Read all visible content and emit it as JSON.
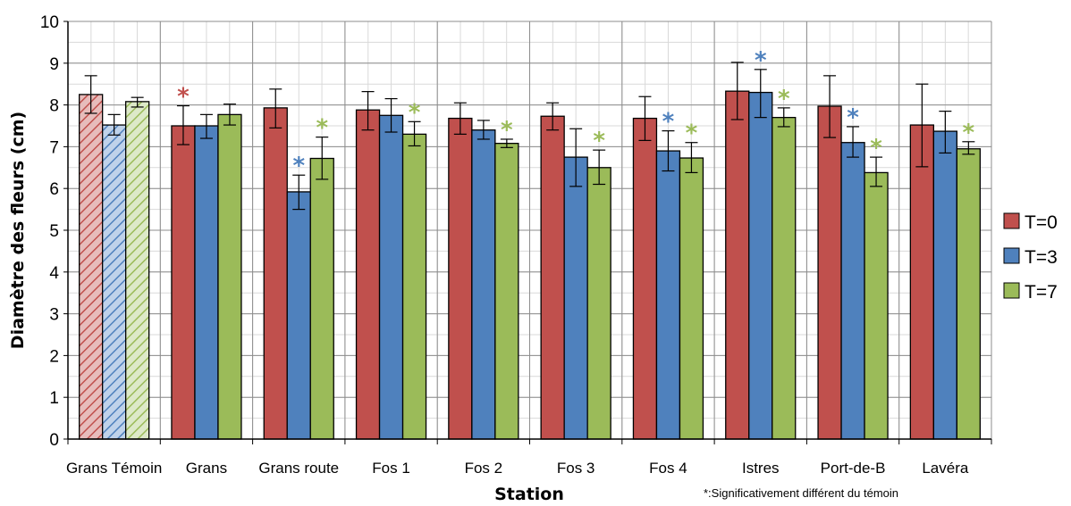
{
  "chart_data": {
    "type": "bar",
    "xlabel": "Station",
    "ylabel": "Diamètre des fleurs (cm)",
    "ylim": [
      0,
      10
    ],
    "yticks": [
      0,
      1,
      2,
      3,
      4,
      5,
      6,
      7,
      8,
      9,
      10
    ],
    "grid": true,
    "legend_position": "right",
    "categories": [
      "Grans Témoin",
      "Grans",
      "Grans route",
      "Fos 1",
      "Fos 2",
      "Fos 3",
      "Fos 4",
      "Istres",
      "Port-de-B",
      "Lavéra"
    ],
    "hatched_categories": [
      "Grans Témoin"
    ],
    "series": [
      {
        "name": "T=0",
        "color": "#c0504d",
        "values": [
          8.25,
          7.5,
          7.93,
          7.88,
          7.68,
          7.73,
          7.68,
          8.33,
          7.97,
          7.52
        ],
        "err_low": [
          7.8,
          7.05,
          7.45,
          7.4,
          7.3,
          7.4,
          7.15,
          7.65,
          7.22,
          6.52
        ],
        "err_high": [
          8.7,
          7.98,
          8.38,
          8.32,
          8.05,
          8.05,
          8.2,
          9.02,
          8.7,
          8.5
        ],
        "significant": [
          false,
          true,
          false,
          false,
          false,
          false,
          false,
          false,
          false,
          false
        ]
      },
      {
        "name": "T=3",
        "color": "#4f81bd",
        "values": [
          7.52,
          7.5,
          5.92,
          7.75,
          7.4,
          6.75,
          6.9,
          8.3,
          7.1,
          7.37
        ],
        "err_low": [
          7.28,
          7.2,
          5.5,
          7.35,
          7.18,
          6.05,
          6.42,
          7.7,
          6.75,
          6.85
        ],
        "err_high": [
          7.77,
          7.77,
          6.32,
          8.15,
          7.63,
          7.43,
          7.38,
          8.85,
          7.48,
          7.85
        ],
        "significant": [
          false,
          false,
          true,
          false,
          false,
          false,
          true,
          true,
          true,
          false
        ]
      },
      {
        "name": "T=7",
        "color": "#9bbb59",
        "values": [
          8.08,
          7.77,
          6.72,
          7.3,
          7.08,
          6.5,
          6.73,
          7.7,
          6.38,
          6.95
        ],
        "err_low": [
          7.95,
          7.52,
          6.22,
          7.02,
          6.98,
          6.1,
          6.38,
          7.48,
          6.05,
          6.82
        ],
        "err_high": [
          8.18,
          8.02,
          7.23,
          7.6,
          7.18,
          6.92,
          7.1,
          7.93,
          6.75,
          7.12
        ],
        "significant": [
          false,
          false,
          true,
          true,
          true,
          true,
          true,
          true,
          true,
          true
        ]
      }
    ],
    "significance_marker": "*",
    "annotation": "*:Significativement différent du témoin"
  }
}
